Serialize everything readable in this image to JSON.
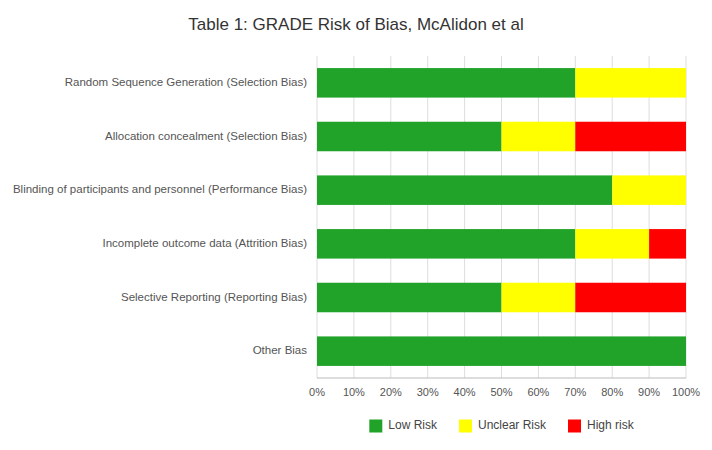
{
  "chart_data": {
    "type": "bar",
    "orientation": "horizontal",
    "stacked": true,
    "title": "Table 1: GRADE Risk of Bias, McAlidon et al",
    "categories": [
      "Random Sequence Generation (Selection Bias)",
      "Allocation concealment (Selection Bias)",
      "Blinding of participants and personnel (Performance Bias)",
      "Incomplete outcome data (Attrition Bias)",
      "Selective Reporting (Reporting Bias)",
      "Other Bias"
    ],
    "series": [
      {
        "name": "Low Risk",
        "color": "#21A329",
        "values": [
          70,
          50,
          80,
          70,
          50,
          100
        ]
      },
      {
        "name": "Unclear Risk",
        "color": "#FFFF00",
        "values": [
          30,
          20,
          20,
          20,
          20,
          0
        ]
      },
      {
        "name": "High risk",
        "color": "#FF0000",
        "values": [
          0,
          30,
          0,
          10,
          30,
          0
        ]
      }
    ],
    "xlim": [
      0,
      100
    ],
    "xticks": [
      {
        "value": 0,
        "label": "0%"
      },
      {
        "value": 10,
        "label": "10%"
      },
      {
        "value": 20,
        "label": "20%"
      },
      {
        "value": 30,
        "label": "30%"
      },
      {
        "value": 40,
        "label": "40%"
      },
      {
        "value": 50,
        "label": "50%"
      },
      {
        "value": 60,
        "label": "60%"
      },
      {
        "value": 70,
        "label": "70%"
      },
      {
        "value": 80,
        "label": "80%"
      },
      {
        "value": 90,
        "label": "90%"
      },
      {
        "value": 100,
        "label": "100%"
      }
    ],
    "grid": true,
    "legend": "bottom"
  }
}
